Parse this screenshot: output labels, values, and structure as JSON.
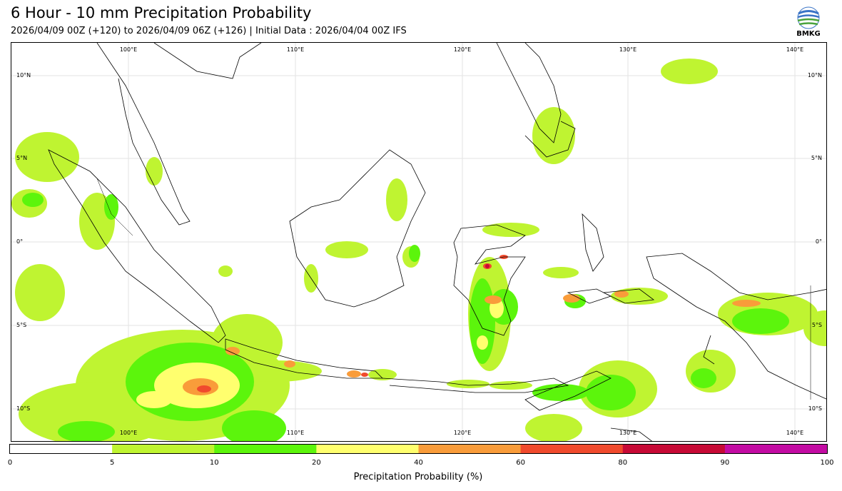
{
  "header": {
    "title": "6 Hour - 10 mm Precipitation Probability",
    "subtitle": "2026/04/09 00Z (+120) to 2026/04/09 06Z (+126) | Initial Data : 2026/04/04 00Z IFS"
  },
  "logo": {
    "text": "BMKG",
    "icon": "bmkg-logo-icon"
  },
  "map": {
    "lon_labels": [
      "100°E",
      "110°E",
      "120°E",
      "130°E",
      "140°E"
    ],
    "lat_labels_left": [
      "10°N",
      "5°N",
      "0°",
      "5°S",
      "10°S"
    ],
    "lat_labels_right": [
      "10°N",
      "5°N",
      "0°",
      "5°S",
      "10°S"
    ],
    "lon_range": [
      95.0,
      144.0
    ],
    "lat_range": [
      -12.0,
      12.0
    ],
    "grid": true,
    "land_color": "#ffffff",
    "coastline_color": "#000000"
  },
  "colorbar": {
    "label": "Precipitation Probability (%)",
    "ticks": [
      "0",
      "5",
      "10",
      "20",
      "40",
      "60",
      "80",
      "90",
      "100"
    ],
    "colors": [
      "#ffffff",
      "#bff431",
      "#5cf50c",
      "#ffff6e",
      "#f99c3a",
      "#f04a2d",
      "#c70a36",
      "#c30ca3"
    ]
  }
}
